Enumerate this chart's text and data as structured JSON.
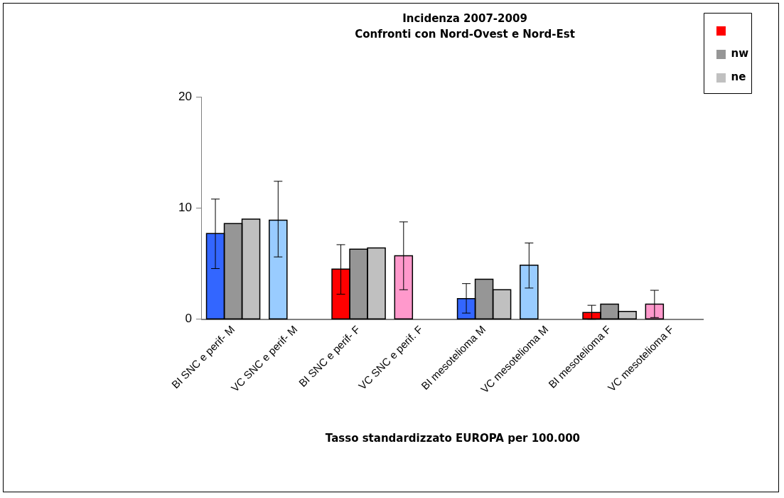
{
  "chart_data": {
    "type": "bar",
    "title": "Incidenza 2007-2009",
    "subtitle": "Confronti con Nord-Ovest e Nord-Est",
    "xlabel": "Tasso standardizzato EUROPA per 100.000",
    "categories": [
      "BI SNC e perif- M",
      "VC SNC e perif- M",
      "BI SNC e perif- F",
      "VC SNC e perif. F",
      "BI mesotelioma M",
      "VC mesotelioma M",
      "BI mesotelioma F",
      "VC mesotelioma F"
    ],
    "series": [
      {
        "color": "#ff0000",
        "colors": [
          "#3366ff",
          "#99ccff",
          "#ff0000",
          "#ff99cc",
          "#3366ff",
          "#99ccff",
          "#ff0000",
          "#ff99cc"
        ],
        "values": [
          7.7,
          8.9,
          4.5,
          5.7,
          1.85,
          4.85,
          0.6,
          1.35
        ],
        "errors": [
          [
            4.55,
            10.8
          ],
          [
            5.6,
            12.4
          ],
          [
            2.25,
            6.7
          ],
          [
            2.65,
            8.75
          ],
          [
            0.55,
            3.2
          ],
          [
            2.8,
            6.85
          ],
          [
            0,
            1.25
          ],
          [
            0.15,
            2.6
          ]
        ]
      },
      {
        "name": "nw",
        "color": "#969696",
        "values": [
          8.6,
          null,
          6.3,
          null,
          3.6,
          null,
          1.35,
          null
        ]
      },
      {
        "name": "ne",
        "color": "#c0c0c0",
        "values": [
          9.0,
          null,
          6.4,
          null,
          2.65,
          null,
          0.7,
          null
        ]
      }
    ],
    "ylim": [
      0,
      20
    ],
    "yticks": [
      0,
      10,
      20
    ],
    "grid": false,
    "legend": "right"
  }
}
